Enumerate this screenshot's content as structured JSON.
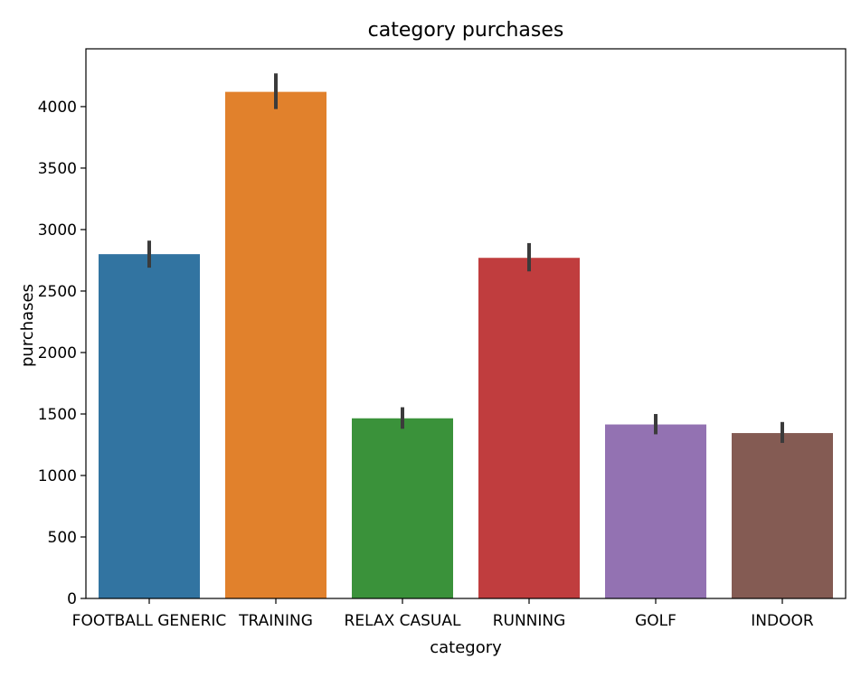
{
  "chart_data": {
    "type": "bar",
    "title": "category purchases",
    "xlabel": "category",
    "ylabel": "purchases",
    "categories": [
      "FOOTBALL GENERIC",
      "TRAINING",
      "RELAX CASUAL",
      "RUNNING",
      "GOLF",
      "INDOOR"
    ],
    "values": [
      2800,
      4120,
      1465,
      2770,
      1415,
      1345
    ],
    "error_bars": [
      {
        "low": 2690,
        "high": 2910
      },
      {
        "low": 3980,
        "high": 4270
      },
      {
        "low": 1380,
        "high": 1555
      },
      {
        "low": 2660,
        "high": 2890
      },
      {
        "low": 1335,
        "high": 1500
      },
      {
        "low": 1265,
        "high": 1435
      }
    ],
    "colors": [
      "#3274a1",
      "#e1812c",
      "#3a923a",
      "#c03d3e",
      "#9372b2",
      "#845b53"
    ],
    "ylim": [
      0,
      4470
    ],
    "yticks": [
      0,
      500,
      1000,
      1500,
      2000,
      2500,
      3000,
      3500,
      4000
    ],
    "grid": false,
    "legend": false
  }
}
